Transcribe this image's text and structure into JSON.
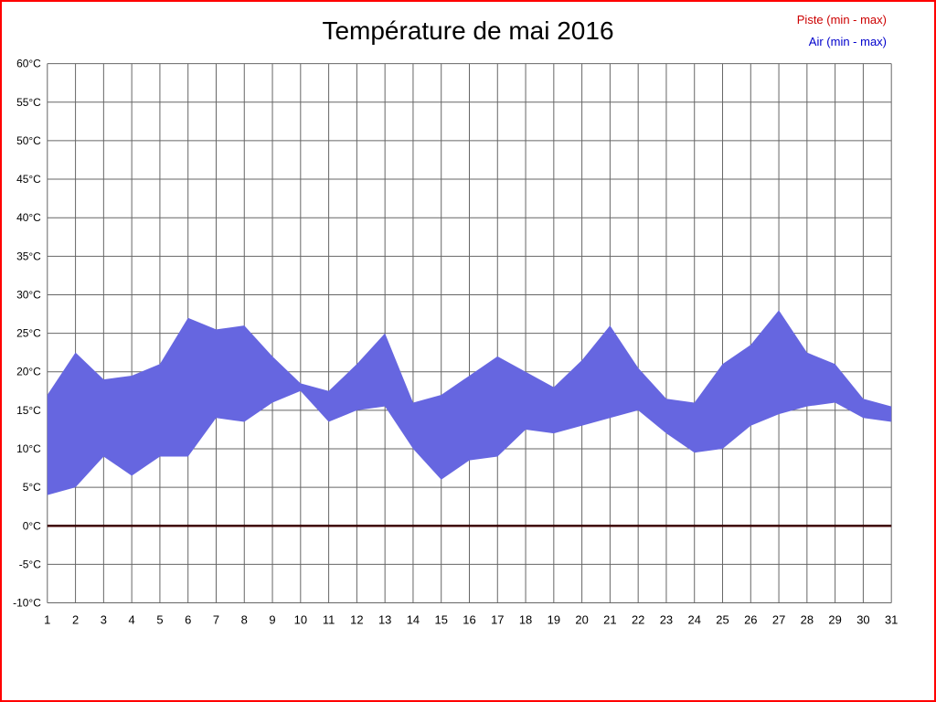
{
  "page": {
    "border_color": "#ff0000",
    "background_color": "#ffffff"
  },
  "legend": {
    "piste_label": "Piste (min - max)",
    "piste_color": "#cc0000",
    "air_label": "Air (min - max)",
    "air_color": "#0000cc"
  },
  "chart_data": {
    "type": "area",
    "title": "Température de mai 2016",
    "xlabel": "",
    "ylabel": "",
    "grid": true,
    "grid_color": "#666666",
    "tick_label_color": "#000000",
    "ylim": [
      -10,
      60
    ],
    "y_ticks": [
      60,
      55,
      50,
      45,
      40,
      35,
      30,
      25,
      20,
      15,
      10,
      5,
      0,
      -5,
      -10
    ],
    "y_tick_labels": [
      "60°C",
      "55°C",
      "50°C",
      "45°C",
      "40°C",
      "35°C",
      "30°C",
      "25°C",
      "20°C",
      "15°C",
      "10°C",
      "5°C",
      "0°C",
      "-5°C",
      "-10°C"
    ],
    "x": [
      1,
      2,
      3,
      4,
      5,
      6,
      7,
      8,
      9,
      10,
      11,
      12,
      13,
      14,
      15,
      16,
      17,
      18,
      19,
      20,
      21,
      22,
      23,
      24,
      25,
      26,
      27,
      28,
      29,
      30,
      31
    ],
    "series": [
      {
        "name": "Air (min - max)",
        "type": "band",
        "color": "#6666e0",
        "min": [
          4,
          5,
          9,
          6.5,
          9,
          9,
          14,
          13.5,
          16,
          17.5,
          13.5,
          15,
          15.5,
          10,
          6,
          8.5,
          9,
          12.5,
          12,
          13,
          14,
          15,
          12,
          9.5,
          10,
          13,
          14.5,
          15.5,
          16,
          14,
          13.5
        ],
        "max": [
          17,
          22.5,
          19,
          19.5,
          21,
          27,
          25.5,
          26,
          22,
          18.5,
          17.5,
          21,
          25,
          16,
          17,
          19.5,
          22,
          20,
          18,
          21.5,
          26,
          20.5,
          16.5,
          16,
          21,
          23.5,
          28,
          22.5,
          21,
          16.5,
          15.5
        ]
      },
      {
        "name": "Piste (min - max)",
        "type": "line",
        "color": "#3f0000",
        "constant_value": 0
      }
    ]
  }
}
